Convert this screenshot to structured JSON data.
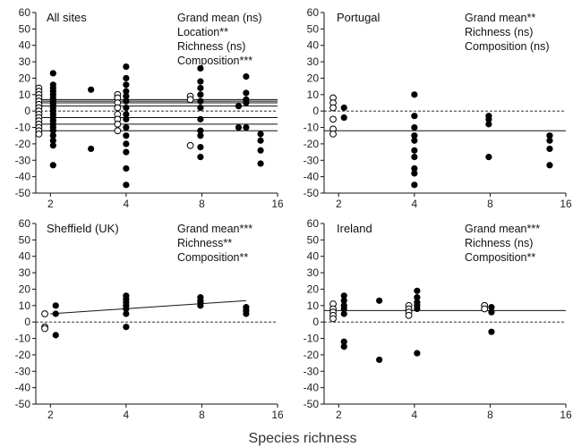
{
  "figure": {
    "xlabel": "Species richness"
  },
  "chart_data": [
    {
      "type": "scatter",
      "title": "All sites",
      "stats": [
        "Grand mean (ns)",
        "Location**",
        "Richness (ns)",
        "Composition***"
      ],
      "x_axis": {
        "scale": "log2",
        "range": [
          1.75,
          16
        ],
        "ticks": [
          2,
          4,
          8,
          16
        ]
      },
      "y_axis": {
        "range": [
          -50,
          60
        ],
        "ticks": [
          -50,
          -40,
          -30,
          -20,
          -10,
          0,
          10,
          20,
          30,
          40,
          50,
          60
        ]
      },
      "zero_line": true,
      "hlines": [
        -12,
        -8,
        -4,
        3,
        5,
        6,
        7
      ],
      "points_open": [
        {
          "x": 1.8,
          "y": 14
        },
        {
          "x": 1.8,
          "y": 12
        },
        {
          "x": 1.8,
          "y": 10
        },
        {
          "x": 1.8,
          "y": 8
        },
        {
          "x": 1.8,
          "y": 6
        },
        {
          "x": 1.8,
          "y": 4
        },
        {
          "x": 1.8,
          "y": 2
        },
        {
          "x": 1.8,
          "y": 0
        },
        {
          "x": 1.8,
          "y": -2
        },
        {
          "x": 1.8,
          "y": -4
        },
        {
          "x": 1.8,
          "y": -6
        },
        {
          "x": 1.8,
          "y": -8
        },
        {
          "x": 1.8,
          "y": -10
        },
        {
          "x": 1.8,
          "y": -12
        },
        {
          "x": 1.8,
          "y": -14
        },
        {
          "x": 3.7,
          "y": 10
        },
        {
          "x": 3.7,
          "y": 8
        },
        {
          "x": 3.7,
          "y": 5
        },
        {
          "x": 3.7,
          "y": 2
        },
        {
          "x": 3.7,
          "y": -2
        },
        {
          "x": 3.7,
          "y": -5
        },
        {
          "x": 3.7,
          "y": -8
        },
        {
          "x": 3.7,
          "y": -12
        },
        {
          "x": 7.2,
          "y": 9
        },
        {
          "x": 7.2,
          "y": 7
        },
        {
          "x": 7.2,
          "y": -21
        }
      ],
      "points_filled": [
        {
          "x": 2.05,
          "y": 23
        },
        {
          "x": 2.05,
          "y": 16
        },
        {
          "x": 2.05,
          "y": 14
        },
        {
          "x": 2.05,
          "y": 12
        },
        {
          "x": 2.05,
          "y": 10
        },
        {
          "x": 2.05,
          "y": 8
        },
        {
          "x": 2.05,
          "y": 6
        },
        {
          "x": 2.05,
          "y": 4
        },
        {
          "x": 2.05,
          "y": 2
        },
        {
          "x": 2.05,
          "y": 0
        },
        {
          "x": 2.05,
          "y": -2
        },
        {
          "x": 2.05,
          "y": -4
        },
        {
          "x": 2.05,
          "y": -6
        },
        {
          "x": 2.05,
          "y": -8
        },
        {
          "x": 2.05,
          "y": -10
        },
        {
          "x": 2.05,
          "y": -12
        },
        {
          "x": 2.05,
          "y": -15
        },
        {
          "x": 2.05,
          "y": -18
        },
        {
          "x": 2.05,
          "y": -21
        },
        {
          "x": 2.05,
          "y": -33
        },
        {
          "x": 2.9,
          "y": 13
        },
        {
          "x": 2.9,
          "y": -23
        },
        {
          "x": 4.0,
          "y": 27
        },
        {
          "x": 4.0,
          "y": 20
        },
        {
          "x": 4.0,
          "y": 16
        },
        {
          "x": 4.0,
          "y": 12
        },
        {
          "x": 4.0,
          "y": 9
        },
        {
          "x": 4.0,
          "y": 6
        },
        {
          "x": 4.0,
          "y": 2
        },
        {
          "x": 4.0,
          "y": -2
        },
        {
          "x": 4.0,
          "y": -5
        },
        {
          "x": 4.0,
          "y": -10
        },
        {
          "x": 4.0,
          "y": -15
        },
        {
          "x": 4.0,
          "y": -20
        },
        {
          "x": 4.0,
          "y": -25
        },
        {
          "x": 4.0,
          "y": -35
        },
        {
          "x": 4.0,
          "y": -45
        },
        {
          "x": 7.9,
          "y": 26
        },
        {
          "x": 7.9,
          "y": 18
        },
        {
          "x": 7.9,
          "y": 14
        },
        {
          "x": 7.9,
          "y": 10
        },
        {
          "x": 7.9,
          "y": 6
        },
        {
          "x": 7.9,
          "y": 2
        },
        {
          "x": 7.9,
          "y": -5
        },
        {
          "x": 7.9,
          "y": -12
        },
        {
          "x": 7.9,
          "y": -15
        },
        {
          "x": 7.9,
          "y": -22
        },
        {
          "x": 7.9,
          "y": -28
        },
        {
          "x": 11.2,
          "y": 3
        },
        {
          "x": 11.2,
          "y": -10
        },
        {
          "x": 12,
          "y": 21
        },
        {
          "x": 12,
          "y": 11
        },
        {
          "x": 12,
          "y": 7
        },
        {
          "x": 12,
          "y": 5
        },
        {
          "x": 12,
          "y": -10
        },
        {
          "x": 13.7,
          "y": -14
        },
        {
          "x": 13.7,
          "y": -18
        },
        {
          "x": 13.7,
          "y": -24
        },
        {
          "x": 13.7,
          "y": -32
        }
      ]
    },
    {
      "type": "scatter",
      "title": "Portugal",
      "stats": [
        "Grand mean**",
        "Richness (ns)",
        "Composition (ns)"
      ],
      "x_axis": {
        "scale": "log2",
        "range": [
          1.75,
          16
        ],
        "ticks": [
          2,
          4,
          8,
          16
        ]
      },
      "y_axis": {
        "range": [
          -50,
          60
        ],
        "ticks": [
          -50,
          -40,
          -30,
          -20,
          -10,
          0,
          10,
          20,
          30,
          40,
          50,
          60
        ]
      },
      "zero_line": true,
      "hlines": [
        -12
      ],
      "points_open": [
        {
          "x": 1.9,
          "y": 8
        },
        {
          "x": 1.9,
          "y": 5
        },
        {
          "x": 1.9,
          "y": 2
        },
        {
          "x": 1.9,
          "y": -5
        },
        {
          "x": 1.9,
          "y": -11
        },
        {
          "x": 1.9,
          "y": -14
        }
      ],
      "points_filled": [
        {
          "x": 2.1,
          "y": 2
        },
        {
          "x": 2.1,
          "y": -4
        },
        {
          "x": 4.0,
          "y": 10
        },
        {
          "x": 4.0,
          "y": -3
        },
        {
          "x": 4.0,
          "y": -10
        },
        {
          "x": 4.0,
          "y": -15
        },
        {
          "x": 4.0,
          "y": -18
        },
        {
          "x": 4.0,
          "y": -24
        },
        {
          "x": 4.0,
          "y": -28
        },
        {
          "x": 4.0,
          "y": -35
        },
        {
          "x": 4.0,
          "y": -38
        },
        {
          "x": 4.0,
          "y": -45
        },
        {
          "x": 7.9,
          "y": -3
        },
        {
          "x": 7.9,
          "y": -5
        },
        {
          "x": 7.9,
          "y": -8
        },
        {
          "x": 7.9,
          "y": -28
        },
        {
          "x": 13.8,
          "y": -15
        },
        {
          "x": 13.8,
          "y": -18
        },
        {
          "x": 13.8,
          "y": -23
        },
        {
          "x": 13.8,
          "y": -33
        }
      ]
    },
    {
      "type": "scatter",
      "title": "Sheffield (UK)",
      "stats": [
        "Grand mean***",
        "Richness**",
        "Composition**"
      ],
      "x_axis": {
        "scale": "log2",
        "range": [
          1.75,
          16
        ],
        "ticks": [
          2,
          4,
          8,
          16
        ]
      },
      "y_axis": {
        "range": [
          -50,
          60
        ],
        "ticks": [
          -50,
          -40,
          -30,
          -20,
          -10,
          0,
          10,
          20,
          30,
          40,
          50,
          60
        ]
      },
      "zero_line": true,
      "fit_line": [
        {
          "x": 2,
          "y": 5
        },
        {
          "x": 12,
          "y": 13
        }
      ],
      "points_open": [
        {
          "x": 1.9,
          "y": 5
        },
        {
          "x": 1.9,
          "y": -3
        },
        {
          "x": 1.9,
          "y": -4
        }
      ],
      "points_filled": [
        {
          "x": 2.1,
          "y": 10
        },
        {
          "x": 2.1,
          "y": 5
        },
        {
          "x": 2.1,
          "y": -8
        },
        {
          "x": 4.0,
          "y": 16
        },
        {
          "x": 4.0,
          "y": 14
        },
        {
          "x": 4.0,
          "y": 12
        },
        {
          "x": 4.0,
          "y": 10
        },
        {
          "x": 4.0,
          "y": 8
        },
        {
          "x": 4.0,
          "y": 5
        },
        {
          "x": 4.0,
          "y": -3
        },
        {
          "x": 7.9,
          "y": 15
        },
        {
          "x": 7.9,
          "y": 13
        },
        {
          "x": 7.9,
          "y": 12
        },
        {
          "x": 7.9,
          "y": 10
        },
        {
          "x": 12,
          "y": 9
        },
        {
          "x": 12,
          "y": 7
        },
        {
          "x": 12,
          "y": 5
        }
      ]
    },
    {
      "type": "scatter",
      "title": "Ireland",
      "stats": [
        "Grand mean***",
        "Richness (ns)",
        "Composition**"
      ],
      "x_axis": {
        "scale": "log2",
        "range": [
          1.75,
          16
        ],
        "ticks": [
          2,
          4,
          8,
          16
        ]
      },
      "y_axis": {
        "range": [
          -50,
          60
        ],
        "ticks": [
          -50,
          -40,
          -30,
          -20,
          -10,
          0,
          10,
          20,
          30,
          40,
          50,
          60
        ]
      },
      "zero_line": true,
      "hlines": [
        7
      ],
      "points_open": [
        {
          "x": 1.9,
          "y": 11
        },
        {
          "x": 1.9,
          "y": 8
        },
        {
          "x": 1.9,
          "y": 6
        },
        {
          "x": 1.9,
          "y": 4
        },
        {
          "x": 1.9,
          "y": 2
        },
        {
          "x": 3.8,
          "y": 10
        },
        {
          "x": 3.8,
          "y": 8
        },
        {
          "x": 3.8,
          "y": 6
        },
        {
          "x": 3.8,
          "y": 4
        },
        {
          "x": 7.6,
          "y": 10
        },
        {
          "x": 7.6,
          "y": 8
        }
      ],
      "points_filled": [
        {
          "x": 2.1,
          "y": 16
        },
        {
          "x": 2.1,
          "y": 13
        },
        {
          "x": 2.1,
          "y": 10
        },
        {
          "x": 2.1,
          "y": 8
        },
        {
          "x": 2.1,
          "y": 5
        },
        {
          "x": 2.1,
          "y": -12
        },
        {
          "x": 2.1,
          "y": -15
        },
        {
          "x": 2.9,
          "y": 13
        },
        {
          "x": 2.9,
          "y": -23
        },
        {
          "x": 4.1,
          "y": 19
        },
        {
          "x": 4.1,
          "y": 15
        },
        {
          "x": 4.1,
          "y": 12
        },
        {
          "x": 4.1,
          "y": 10
        },
        {
          "x": 4.1,
          "y": 8
        },
        {
          "x": 4.1,
          "y": -19
        },
        {
          "x": 8.1,
          "y": 9
        },
        {
          "x": 8.1,
          "y": 6
        },
        {
          "x": 8.1,
          "y": -6
        }
      ]
    }
  ]
}
